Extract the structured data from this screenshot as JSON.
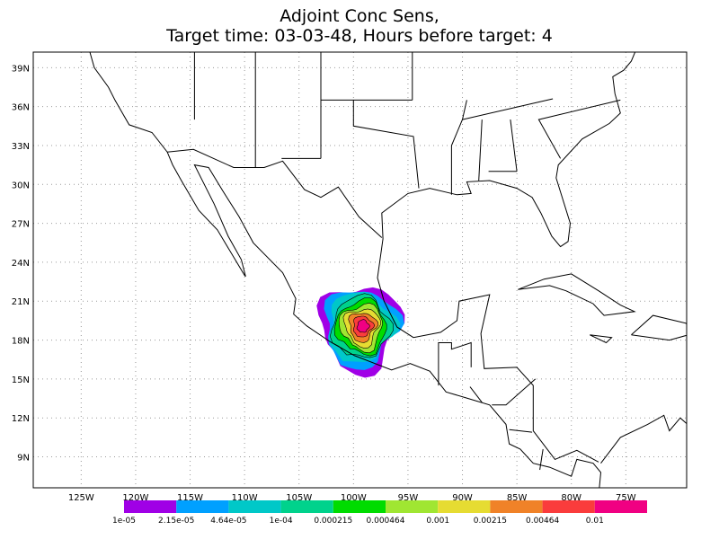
{
  "header": {
    "title_line1": "Adjoint Conc Sens,",
    "title_line2": "Target time: 03-03-48, Hours before target: 4"
  },
  "map": {
    "lat_ticks": [
      {
        "value": 39,
        "label": "39N"
      },
      {
        "value": 36,
        "label": "36N"
      },
      {
        "value": 33,
        "label": "33N"
      },
      {
        "value": 30,
        "label": "30N"
      },
      {
        "value": 27,
        "label": "27N"
      },
      {
        "value": 24,
        "label": "24N"
      },
      {
        "value": 21,
        "label": "21N"
      },
      {
        "value": 18,
        "label": "18N"
      },
      {
        "value": 15,
        "label": "15N"
      },
      {
        "value": 12,
        "label": "12N"
      },
      {
        "value": 9,
        "label": "9N"
      }
    ],
    "lon_ticks": [
      {
        "value": -125,
        "label": "125W"
      },
      {
        "value": -120,
        "label": "120W"
      },
      {
        "value": -115,
        "label": "115W"
      },
      {
        "value": -110,
        "label": "110W"
      },
      {
        "value": -105,
        "label": "105W"
      },
      {
        "value": -100,
        "label": "100W"
      },
      {
        "value": -95,
        "label": "95W"
      },
      {
        "value": -90,
        "label": "90W"
      },
      {
        "value": -85,
        "label": "85W"
      },
      {
        "value": -80,
        "label": "80W"
      },
      {
        "value": -75,
        "label": "75W"
      }
    ]
  },
  "colorbar": {
    "levels": [
      {
        "value": 1e-05,
        "label": "1e-05"
      },
      {
        "value": 2.15e-05,
        "label": "2.15e-05"
      },
      {
        "value": 4.64e-05,
        "label": "4.64e-05"
      },
      {
        "value": 0.0001,
        "label": "1e-04"
      },
      {
        "value": 0.000215,
        "label": "0.000215"
      },
      {
        "value": 0.000464,
        "label": "0.000464"
      },
      {
        "value": 0.001,
        "label": "0.001"
      },
      {
        "value": 0.00215,
        "label": "0.00215"
      },
      {
        "value": 0.00464,
        "label": "0.00464"
      },
      {
        "value": 0.01,
        "label": "0.01"
      }
    ],
    "colors": [
      "#a000e6",
      "#00a0ff",
      "#00c8c8",
      "#00d28c",
      "#00dc00",
      "#a0e632",
      "#e6dc32",
      "#f08228",
      "#fa3c3c",
      "#f00082"
    ]
  }
}
